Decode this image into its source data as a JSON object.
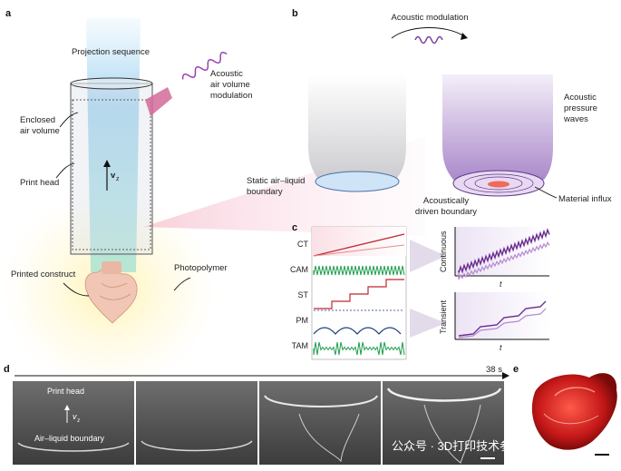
{
  "panels": {
    "a": {
      "letter": "a",
      "labels": {
        "projection": "Projection sequence",
        "acoustic_mod": "Acoustic\nair volume\nmodulation",
        "enclosed": "Enclosed\nair volume",
        "print_head": "Print head",
        "vz": "v",
        "vz_sub": "z",
        "printed": "Printed construct",
        "photopolymer": "Photopolymer"
      }
    },
    "b": {
      "letter": "b",
      "labels": {
        "acoustic_modulation": "Acoustic modulation",
        "static_boundary": "Static air–liquid\nboundary",
        "acoustic_pressure": "Acoustic\npressure\nwaves",
        "driven_boundary": "Acoustically\ndriven boundary",
        "material_influx": "Material influx"
      }
    },
    "c": {
      "letter": "c",
      "rows": [
        "CT",
        "CAM",
        "ST",
        "PM",
        "TAM"
      ],
      "continuous": "Continuous",
      "transient": "Transient",
      "t": "t"
    },
    "d": {
      "letter": "d",
      "time": "38 s",
      "print_head": "Print head",
      "vz": "v",
      "vz_sub": "z",
      "boundary": "Air–liquid boundary"
    },
    "e": {
      "letter": "e"
    }
  },
  "watermark": "公众号 · 3D打印技术参考",
  "colors": {
    "purple": "#6a2d8f",
    "light_purple": "#b48ad0",
    "red": "#c0282e",
    "green": "#1f9e4d",
    "navy": "#1d3a7a"
  }
}
